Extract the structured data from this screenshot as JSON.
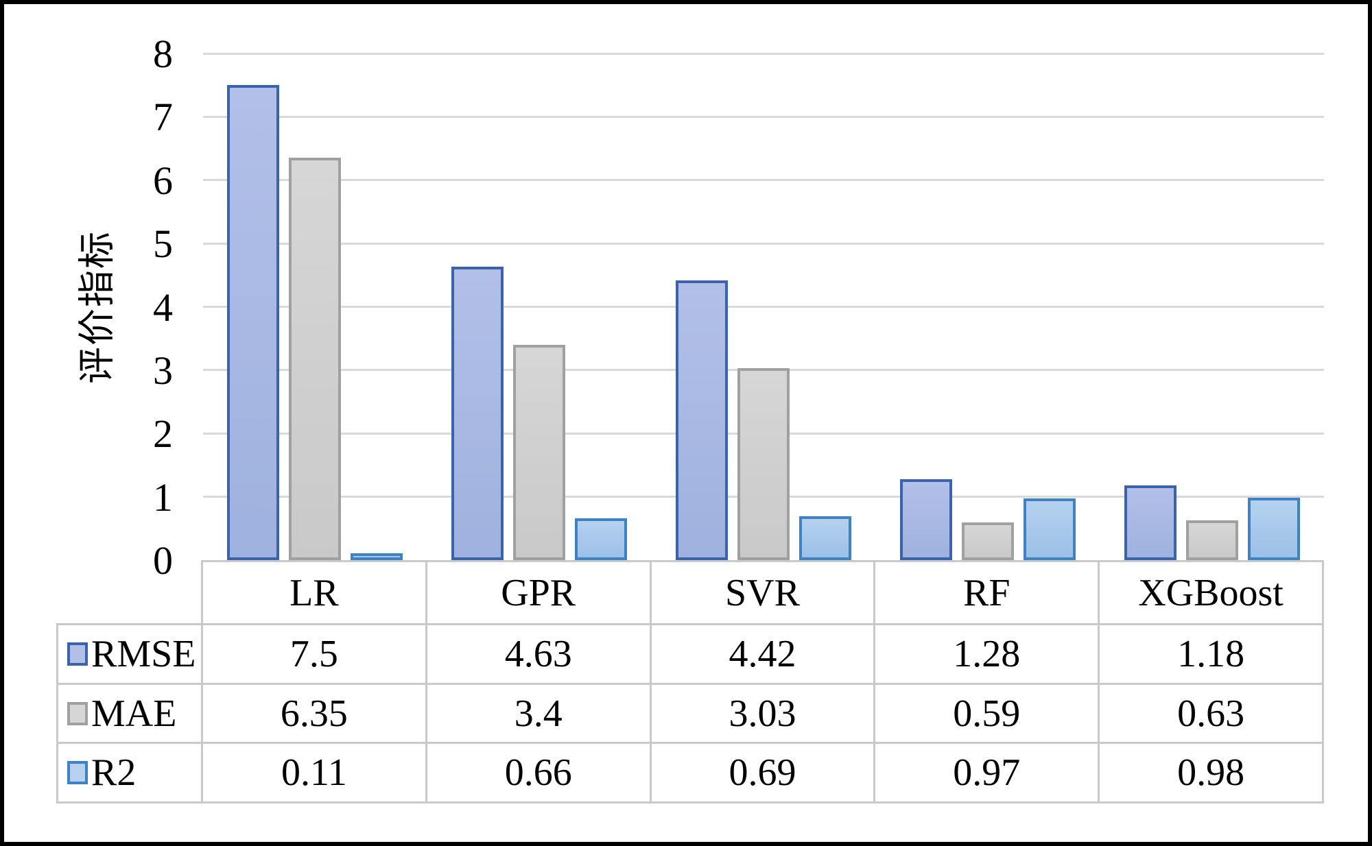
{
  "figure": {
    "background": "#ffffff",
    "frame_color": "#000000",
    "gridline_color": "#d9d9d9",
    "table_border_color": "#c9c9c9"
  },
  "chart_data": {
    "type": "bar",
    "title": "",
    "xlabel": "",
    "ylabel": "评价指标",
    "ylim": [
      0,
      8
    ],
    "yticks": [
      0,
      1,
      2,
      3,
      4,
      5,
      6,
      7,
      8
    ],
    "grid": true,
    "legend_position": "data-table-left",
    "categories": [
      "LR",
      "GPR",
      "SVR",
      "RF",
      "XGBoost"
    ],
    "series": [
      {
        "name": "RMSE",
        "values": [
          7.5,
          4.63,
          4.42,
          1.28,
          1.18
        ],
        "fill": "#9fb1de",
        "fill_light": "#b2c0e8",
        "border": "#3a62ad"
      },
      {
        "name": "MAE",
        "values": [
          6.35,
          3.4,
          3.03,
          0.59,
          0.63
        ],
        "fill": "#c9c9c9",
        "fill_light": "#d6d6d6",
        "border": "#a0a0a0"
      },
      {
        "name": "R2",
        "values": [
          0.11,
          0.66,
          0.69,
          0.97,
          0.98
        ],
        "fill": "#9cc0e7",
        "fill_light": "#b5d1ef",
        "border": "#3f82c3"
      }
    ]
  }
}
